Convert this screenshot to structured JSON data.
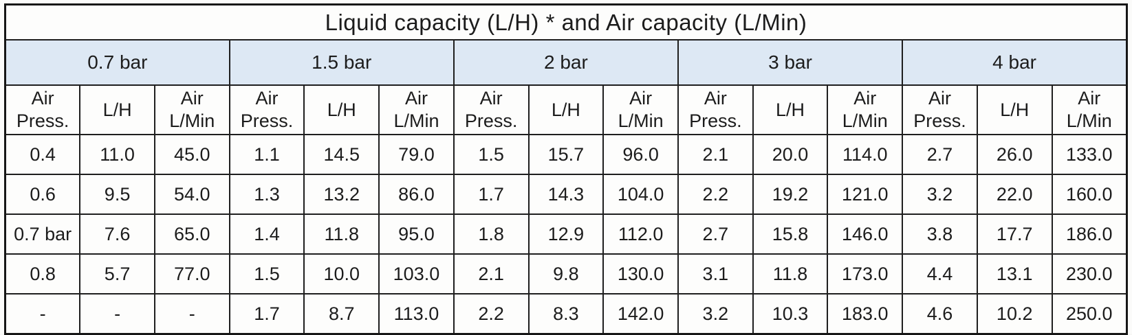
{
  "table": {
    "title": "Liquid capacity (L/H) * and Air capacity (L/Min)",
    "groups": [
      "0.7 bar",
      "1.5 bar",
      "2 bar",
      "3 bar",
      "4 bar"
    ],
    "sub_headers": [
      "Air Press.",
      "L/H",
      "Air L/Min"
    ],
    "rows": [
      [
        "0.4",
        "11.0",
        "45.0",
        "1.1",
        "14.5",
        "79.0",
        "1.5",
        "15.7",
        "96.0",
        "2.1",
        "20.0",
        "114.0",
        "2.7",
        "26.0",
        "133.0"
      ],
      [
        "0.6",
        "9.5",
        "54.0",
        "1.3",
        "13.2",
        "86.0",
        "1.7",
        "14.3",
        "104.0",
        "2.2",
        "19.2",
        "121.0",
        "3.2",
        "22.0",
        "160.0"
      ],
      [
        "0.7 bar",
        "7.6",
        "65.0",
        "1.4",
        "11.8",
        "95.0",
        "1.8",
        "12.9",
        "112.0",
        "2.7",
        "15.8",
        "146.0",
        "3.8",
        "17.7",
        "186.0"
      ],
      [
        "0.8",
        "5.7",
        "77.0",
        "1.5",
        "10.0",
        "103.0",
        "2.1",
        "9.8",
        "130.0",
        "3.1",
        "11.8",
        "173.0",
        "4.4",
        "13.1",
        "230.0"
      ],
      [
        "-",
        "-",
        "-",
        "1.7",
        "8.7",
        "113.0",
        "2.2",
        "8.3",
        "142.0",
        "3.2",
        "10.3",
        "183.0",
        "4.6",
        "10.2",
        "250.0"
      ]
    ],
    "colors": {
      "group_header_bg": "#dde8f4",
      "border": "#1e1e1e",
      "text": "#1c1c1c"
    }
  }
}
